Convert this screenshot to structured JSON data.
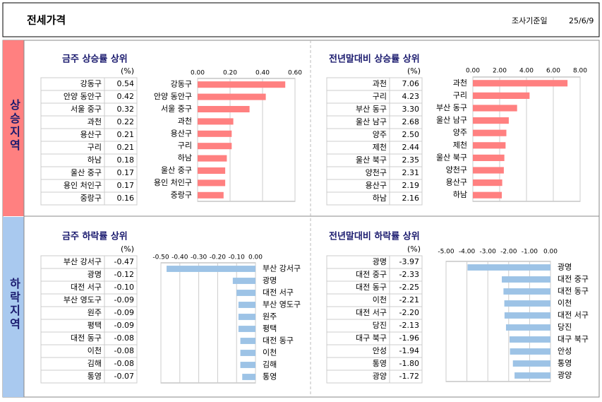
{
  "header": {
    "title": "전세가격",
    "date_label": "조사기준일",
    "date": "25/6/9"
  },
  "side_labels": [
    "상승지역",
    "하락지역"
  ],
  "chart_data": [
    {
      "type": "bar",
      "orientation": "horizontal",
      "title": "금주 상승률 상위",
      "unit": "(%)",
      "color": "#ff8080",
      "categories": [
        "강동구",
        "안양 동안구",
        "서울 중구",
        "과천",
        "용산구",
        "구리",
        "하남",
        "울산 중구",
        "용인 처인구",
        "중랑구"
      ],
      "values": [
        0.54,
        0.42,
        0.32,
        0.22,
        0.21,
        0.21,
        0.18,
        0.17,
        0.17,
        0.16
      ],
      "value_labels": [
        "0.54",
        "0.42",
        "0.32",
        "0.22",
        "0.21",
        "0.21",
        "0.18",
        "0.17",
        "0.17",
        "0.16"
      ],
      "xlim": [
        0,
        0.6
      ],
      "xticks": [
        {
          "value": 0,
          "label": "0.00"
        },
        {
          "value": 0.2,
          "label": "0.20"
        },
        {
          "value": 0.4,
          "label": "0.40"
        },
        {
          "value": 0.6,
          "label": "0.60"
        }
      ],
      "grid": true
    },
    {
      "type": "bar",
      "orientation": "horizontal",
      "title": "전년말대비 상승률 상위",
      "unit": "(%)",
      "color": "#ff8080",
      "categories": [
        "과천",
        "구리",
        "부산 동구",
        "울산 남구",
        "양주",
        "제천",
        "울산 북구",
        "양천구",
        "용산구",
        "하남"
      ],
      "values": [
        7.06,
        4.23,
        3.3,
        2.68,
        2.5,
        2.44,
        2.35,
        2.31,
        2.19,
        2.16
      ],
      "value_labels": [
        "7.06",
        "4.23",
        "3.30",
        "2.68",
        "2.50",
        "2.44",
        "2.35",
        "2.31",
        "2.19",
        "2.16"
      ],
      "xlim": [
        0,
        8
      ],
      "xticks": [
        {
          "value": 0,
          "label": "0.00"
        },
        {
          "value": 2,
          "label": "2.00"
        },
        {
          "value": 4,
          "label": "4.00"
        },
        {
          "value": 6,
          "label": "6.00"
        },
        {
          "value": 8,
          "label": "8.00"
        }
      ],
      "grid": true
    },
    {
      "type": "bar",
      "orientation": "horizontal",
      "title": "금주 하락률 상위",
      "unit": "(%)",
      "color": "#9dc3e6",
      "categories": [
        "부산 강서구",
        "광명",
        "대전 서구",
        "부산 영도구",
        "원주",
        "평택",
        "대전 동구",
        "이천",
        "김해",
        "통영"
      ],
      "values": [
        -0.47,
        -0.12,
        -0.1,
        -0.09,
        -0.09,
        -0.09,
        -0.08,
        -0.08,
        -0.08,
        -0.07
      ],
      "value_labels": [
        "-0.47",
        "-0.12",
        "-0.10",
        "-0.09",
        "-0.09",
        "-0.09",
        "-0.08",
        "-0.08",
        "-0.08",
        "-0.07"
      ],
      "xlim": [
        -0.5,
        0
      ],
      "xticks": [
        {
          "value": -0.5,
          "label": "-0.50"
        },
        {
          "value": -0.4,
          "label": "-0.40"
        },
        {
          "value": -0.3,
          "label": "-0.30"
        },
        {
          "value": -0.2,
          "label": "-0.20"
        },
        {
          "value": -0.1,
          "label": "-0.10"
        },
        {
          "value": 0,
          "label": "0.00"
        }
      ],
      "grid": true
    },
    {
      "type": "bar",
      "orientation": "horizontal",
      "title": "전년말대비 하락률 상위",
      "unit": "(%)",
      "color": "#9dc3e6",
      "categories": [
        "광명",
        "대전 중구",
        "대전 동구",
        "이천",
        "대전 서구",
        "당진",
        "대구 북구",
        "안성",
        "통영",
        "광양"
      ],
      "values": [
        -3.97,
        -2.33,
        -2.25,
        -2.21,
        -2.2,
        -2.13,
        -1.96,
        -1.94,
        -1.8,
        -1.72
      ],
      "value_labels": [
        "-3.97",
        "-2.33",
        "-2.25",
        "-2.21",
        "-2.20",
        "-2.13",
        "-1.96",
        "-1.94",
        "-1.80",
        "-1.72"
      ],
      "xlim": [
        -5,
        0
      ],
      "xticks": [
        {
          "value": -5,
          "label": "-5.00"
        },
        {
          "value": -4,
          "label": "-4.00"
        },
        {
          "value": -3,
          "label": "-3.00"
        },
        {
          "value": -2,
          "label": "-2.00"
        },
        {
          "value": -1,
          "label": "-1.00"
        },
        {
          "value": 0,
          "label": "0.00"
        }
      ],
      "grid": true
    }
  ]
}
